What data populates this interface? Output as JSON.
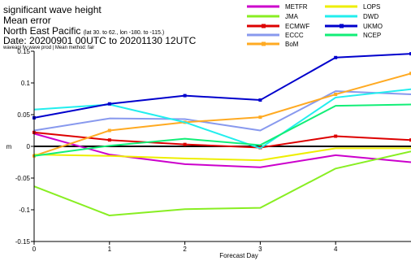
{
  "header": {
    "line1": "significant wave height",
    "line2": "Mean error",
    "line3_main": "North East Pacific",
    "line3_small": "(lat  30. to 62., lon  -180. to  -115.)",
    "line4": "Date: 20200901 00UTC to 20201130 12UTC",
    "line5": "waveapi fw wave prod | Mean method: fair"
  },
  "chart_data": {
    "type": "line",
    "xlabel": "Forecast Day",
    "ylabel": "m",
    "xlim": [
      0,
      5
    ],
    "ylim": [
      -0.15,
      0.15
    ],
    "x": [
      0,
      1,
      2,
      3,
      4,
      5
    ],
    "xticks": [
      "0",
      "1",
      "2",
      "3",
      "4"
    ],
    "yticks": [
      "-0.15",
      "-0.1",
      "-0.05",
      "0",
      "0.05",
      "0.1",
      "0.15"
    ],
    "zero_line": true,
    "legend_placement": "top-right",
    "series": [
      {
        "name": "METFR",
        "color": "#cc00cc",
        "marker": false,
        "values": [
          0.02,
          -0.013,
          -0.028,
          -0.033,
          -0.014,
          -0.025
        ]
      },
      {
        "name": "JMA",
        "color": "#88ee22",
        "marker": false,
        "values": [
          -0.063,
          -0.109,
          -0.099,
          -0.097,
          -0.035,
          -0.008
        ]
      },
      {
        "name": "ECMWF",
        "color": "#dd0000",
        "marker": true,
        "values": [
          0.022,
          0.01,
          0.003,
          -0.002,
          0.016,
          0.01
        ]
      },
      {
        "name": "ECCC",
        "color": "#8899ee",
        "marker": false,
        "values": [
          0.025,
          0.044,
          0.043,
          0.025,
          0.087,
          0.082
        ]
      },
      {
        "name": "BoM",
        "color": "#ffaa22",
        "marker": true,
        "values": [
          -0.015,
          0.025,
          0.038,
          0.046,
          0.082,
          0.115
        ]
      },
      {
        "name": "LOPS",
        "color": "#eeee00",
        "marker": false,
        "values": [
          -0.013,
          -0.015,
          -0.019,
          -0.022,
          -0.003,
          -0.003
        ]
      },
      {
        "name": "DWD",
        "color": "#22eeee",
        "marker": false,
        "values": [
          0.058,
          0.066,
          0.038,
          -0.003,
          0.077,
          0.09
        ]
      },
      {
        "name": "UKMO",
        "color": "#0000cc",
        "marker": true,
        "values": [
          0.045,
          0.067,
          0.08,
          0.073,
          0.14,
          0.146
        ]
      },
      {
        "name": "NCEP",
        "color": "#11ee77",
        "marker": false,
        "values": [
          -0.015,
          0.001,
          0.012,
          0.002,
          0.064,
          0.066
        ]
      }
    ]
  }
}
